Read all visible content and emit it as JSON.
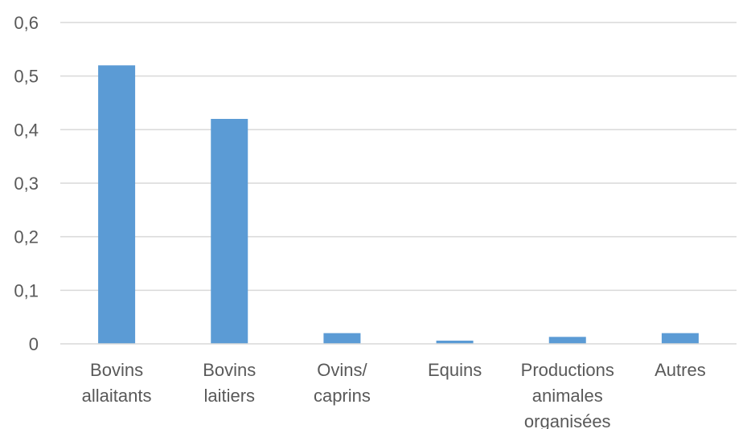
{
  "chart_data": {
    "type": "bar",
    "categories": [
      [
        "Bovins",
        "allaitants"
      ],
      [
        "Bovins",
        "laitiers"
      ],
      [
        "Ovins/",
        "caprins"
      ],
      [
        "Equins"
      ],
      [
        "Productions",
        "animales",
        "organisées"
      ],
      [
        "Autres"
      ]
    ],
    "values": [
      0.52,
      0.42,
      0.02,
      0.006,
      0.013,
      0.02
    ],
    "ylim": [
      0,
      0.6
    ],
    "yticks": [
      "0",
      "0,1",
      "0,2",
      "0,3",
      "0,4",
      "0,5",
      "0,6"
    ],
    "grid": true,
    "bar_color": "#5B9BD5",
    "grid_color": "#D9D9D9",
    "text_color": "#595959"
  }
}
